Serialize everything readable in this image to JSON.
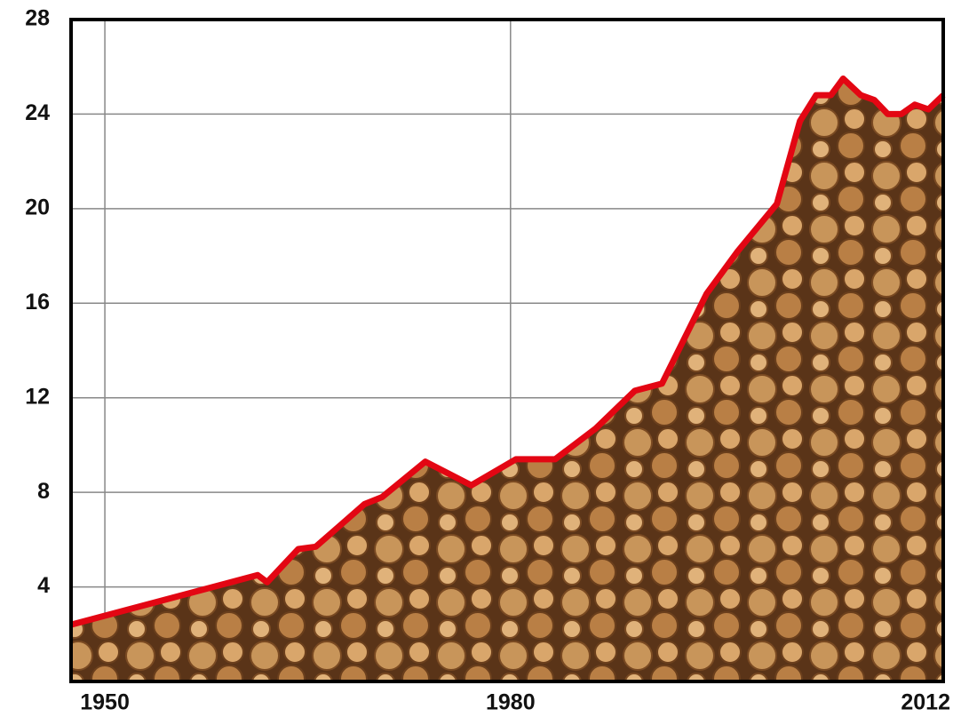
{
  "chart_data": {
    "type": "line",
    "x": [
      1947.5,
      1961.3,
      1962,
      1964.3,
      1965.6,
      1969.2,
      1970.5,
      1973.7,
      1977.1,
      1980.4,
      1983.3,
      1986.3,
      1989.2,
      1991.2,
      1994.5,
      1996.8,
      1999.7,
      2001.4,
      2002.6,
      2003.7,
      2004.6,
      2005.9,
      2006.9,
      2007.9,
      2008.9,
      2009.9,
      2010.9,
      2012
    ],
    "values": [
      2.4,
      4.5,
      4.2,
      5.6,
      5.7,
      7.5,
      7.8,
      9.3,
      8.3,
      9.4,
      9.4,
      10.7,
      12.3,
      12.6,
      16.4,
      18.2,
      20.2,
      23.7,
      24.8,
      24.8,
      25.5,
      24.8,
      24.6,
      24.0,
      24.0,
      24.4,
      24.2,
      24.8
    ],
    "color": "#e30613",
    "xlim": [
      1947.5,
      2012
    ],
    "xticks": [
      1950,
      1980,
      2012
    ],
    "ylim": [
      0,
      28
    ],
    "yticks": [
      4,
      8,
      12,
      16,
      20,
      24,
      28
    ],
    "grid": true
  }
}
